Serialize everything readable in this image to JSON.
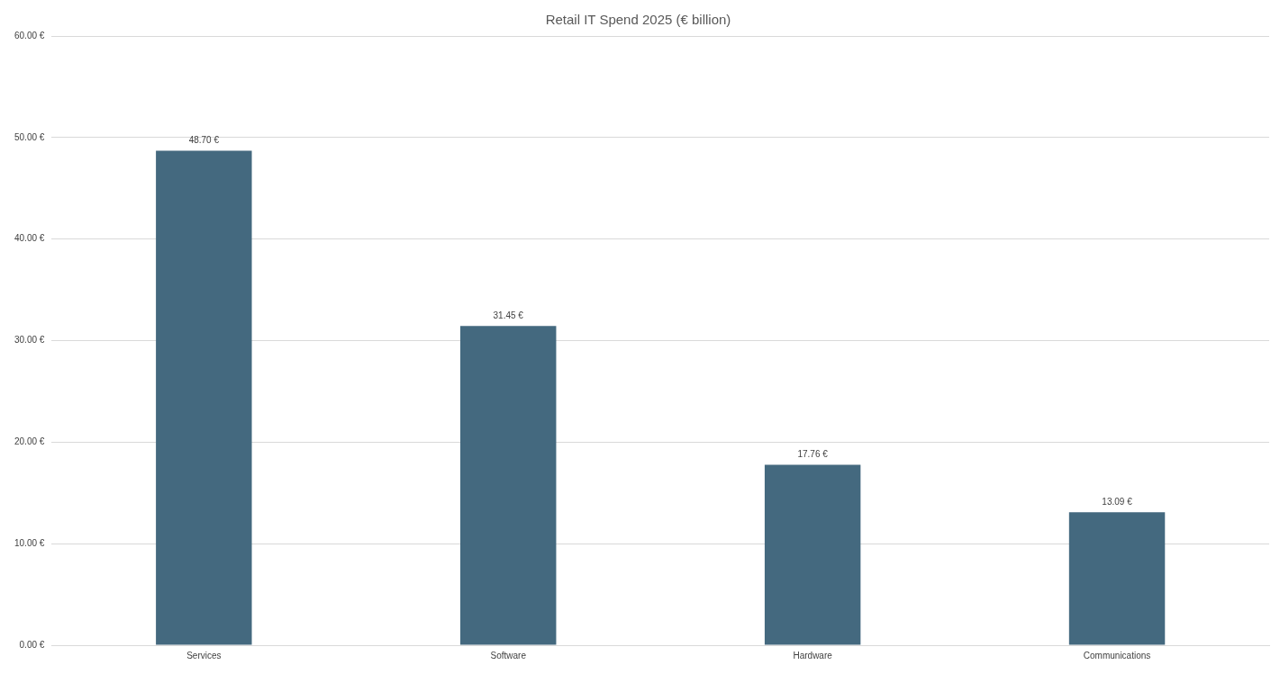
{
  "chart_data": {
    "type": "bar",
    "title": "Retail IT Spend 2025 (€ billion)",
    "categories": [
      "Services",
      "Software",
      "Hardware",
      "Communications"
    ],
    "values": [
      48.7,
      31.45,
      17.76,
      13.09
    ],
    "value_labels": [
      "48.70 €",
      "31.45 €",
      "17.76 €",
      "13.09 €"
    ],
    "color": "#44697f",
    "ylim": [
      0,
      60
    ],
    "yticks": [
      {
        "value": 0,
        "label": "0.00 €"
      },
      {
        "value": 10,
        "label": "10.00 €"
      },
      {
        "value": 20,
        "label": "20.00 €"
      },
      {
        "value": 30,
        "label": "30.00 €"
      },
      {
        "value": 40,
        "label": "40.00 €"
      },
      {
        "value": 50,
        "label": "50.00 €"
      },
      {
        "value": 60,
        "label": "60.00 €"
      }
    ],
    "grid": "y"
  }
}
